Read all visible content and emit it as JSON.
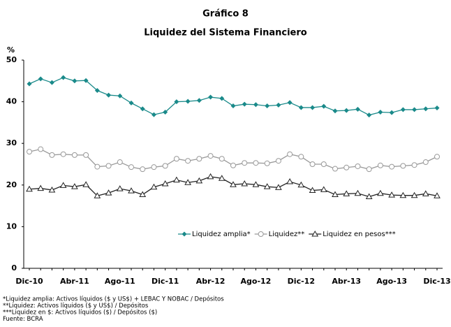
{
  "chart_data": {
    "type": "line",
    "title": "Gráfico 8",
    "subtitle": "Liquidez del Sistema Financiero",
    "y_label": "%",
    "categories": [
      "Dic-10",
      null,
      null,
      null,
      "Abr-11",
      null,
      null,
      null,
      "Ago-11",
      null,
      null,
      null,
      "Dic-11",
      null,
      null,
      null,
      "Abr-12",
      null,
      null,
      null,
      "Ago-12",
      null,
      null,
      null,
      "Dic-12",
      null,
      null,
      null,
      "Abr-13",
      null,
      null,
      null,
      "Ago-13",
      null,
      null,
      null,
      "Dic-13"
    ],
    "series": [
      {
        "name": "Liquidez amplia*",
        "color": "#1a8a8a",
        "marker": "diamond",
        "values": [
          44.3,
          45.5,
          44.6,
          45.8,
          45.0,
          45.1,
          42.7,
          41.6,
          41.4,
          39.7,
          38.3,
          36.9,
          37.5,
          40.0,
          40.1,
          40.3,
          41.1,
          40.8,
          39.0,
          39.4,
          39.3,
          39.0,
          39.2,
          39.8,
          38.6,
          38.6,
          38.9,
          37.8,
          37.9,
          38.2,
          36.8,
          37.5,
          37.4,
          38.1,
          38.1,
          38.3,
          38.5
        ]
      },
      {
        "name": "Liquidez**",
        "color": "#999999",
        "marker": "circle",
        "values": [
          28.0,
          28.6,
          27.2,
          27.4,
          27.2,
          27.2,
          24.4,
          24.6,
          25.5,
          24.3,
          23.8,
          24.3,
          24.6,
          26.3,
          25.8,
          26.3,
          27.0,
          26.3,
          24.7,
          25.3,
          25.3,
          25.2,
          25.8,
          27.4,
          26.8,
          25.0,
          25.0,
          23.9,
          24.2,
          24.5,
          23.8,
          24.7,
          24.4,
          24.6,
          24.8,
          25.5,
          26.8
        ]
      },
      {
        "name": "Liquidez en pesos***",
        "color": "#222222",
        "marker": "triangle",
        "values": [
          19.0,
          19.2,
          18.8,
          19.9,
          19.6,
          20.1,
          17.4,
          18.1,
          19.1,
          18.6,
          17.7,
          19.5,
          20.3,
          21.2,
          20.6,
          21.0,
          22.0,
          21.6,
          20.1,
          20.3,
          20.1,
          19.6,
          19.4,
          20.8,
          20.0,
          18.7,
          18.9,
          17.7,
          17.9,
          18.0,
          17.2,
          18.0,
          17.6,
          17.5,
          17.5,
          17.9,
          17.4
        ]
      }
    ],
    "ylim": [
      0,
      50
    ],
    "yticks": [
      0,
      10,
      20,
      30,
      40,
      50
    ],
    "grid": false,
    "notes": [
      "*Liquidez amplia: Activos líquidos ($ y US$) + LEBAC Y NOBAC / Depósitos",
      "**Liquidez: Activos líquidos ($ y US$) / Depósitos",
      "***Liquidez en $: Activos líquidos ($) / Depósitos ($)",
      "Fuente: BCRA"
    ]
  }
}
